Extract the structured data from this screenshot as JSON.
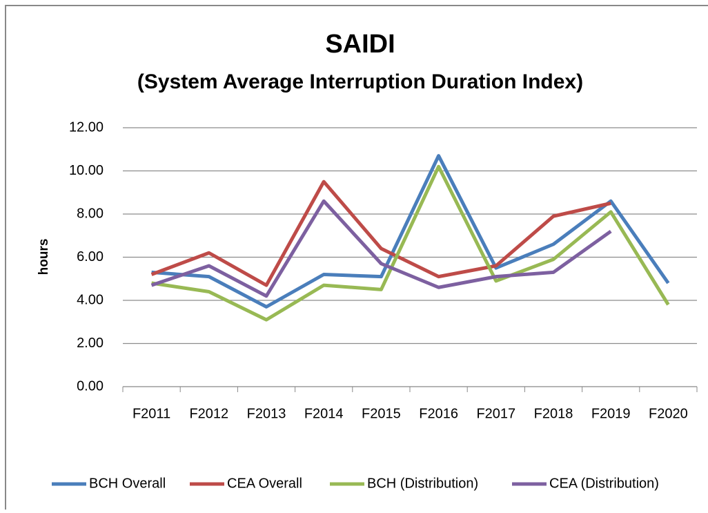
{
  "chart_data": {
    "type": "line",
    "title": "SAIDI",
    "subtitle": "(System Average Interruption Duration Index)",
    "y_label": "hours",
    "categories": [
      "F2011",
      "F2012",
      "F2013",
      "F2014",
      "F2015",
      "F2016",
      "F2017",
      "F2018",
      "F2019",
      "F2020"
    ],
    "series": [
      {
        "name": "BCH Overall",
        "color": "#4a7ebb",
        "values": [
          5.3,
          5.1,
          3.7,
          5.2,
          5.1,
          10.7,
          5.5,
          6.6,
          8.6,
          4.8
        ]
      },
      {
        "name": "CEA Overall",
        "color": "#be4b48",
        "values": [
          5.2,
          6.2,
          4.7,
          9.5,
          6.4,
          5.1,
          5.6,
          7.9,
          8.5,
          null
        ]
      },
      {
        "name": "BCH (Distribution)",
        "color": "#98b954",
        "values": [
          4.8,
          4.4,
          3.1,
          4.7,
          4.5,
          10.2,
          4.9,
          5.9,
          8.1,
          3.8
        ]
      },
      {
        "name": "CEA (Distribution)",
        "color": "#7d60a0",
        "values": [
          4.7,
          5.6,
          4.2,
          8.6,
          5.7,
          4.6,
          5.1,
          5.3,
          7.2,
          null
        ]
      }
    ],
    "ylim": [
      0,
      12
    ],
    "yticks": [
      {
        "value": 0,
        "label": "0.00"
      },
      {
        "value": 2,
        "label": "2.00"
      },
      {
        "value": 4,
        "label": "4.00"
      },
      {
        "value": 6,
        "label": "6.00"
      },
      {
        "value": 8,
        "label": "8.00"
      },
      {
        "value": 10,
        "label": "10.00"
      },
      {
        "value": 12,
        "label": "12.00"
      }
    ],
    "grid": true,
    "legend": "bottom"
  }
}
